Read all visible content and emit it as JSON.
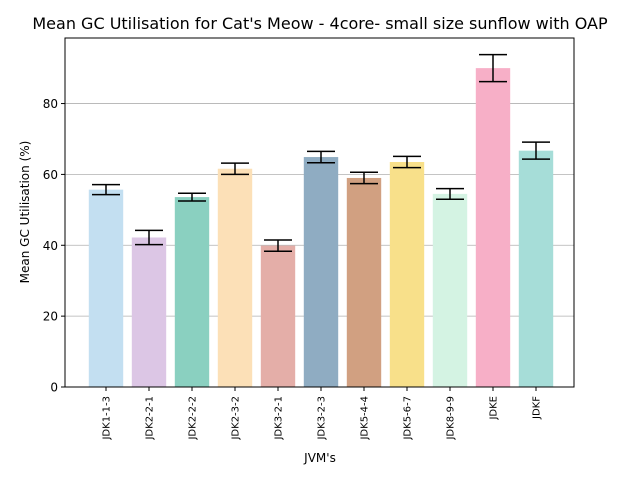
{
  "chart_data": {
    "type": "bar",
    "title": "Mean GC Utilisation for Cat's Meow - 4core- small size sunflow with OAP",
    "xlabel": "JVM's",
    "ylabel": "Mean GC Utilisation (%)",
    "ylim": [
      0,
      98.5
    ],
    "yticks": [
      0,
      20,
      40,
      60,
      80
    ],
    "grid": "y",
    "categories": [
      "JDK1-1-3",
      "JDK2-2-1",
      "JDK2-2-2",
      "JDK2-3-2",
      "JDK3-2-1",
      "JDK3-2-3",
      "JDK5-4-4",
      "JDK5-6-7",
      "JDK8-9-9",
      "JDKE",
      "JDKF"
    ],
    "values": [
      55.7,
      42.2,
      53.6,
      61.6,
      39.9,
      64.9,
      59.0,
      63.5,
      54.5,
      90.0,
      66.7
    ],
    "errors": [
      1.4,
      2.0,
      1.1,
      1.6,
      1.6,
      1.6,
      1.6,
      1.6,
      1.5,
      3.8,
      2.4
    ],
    "colors": [
      "#c3dff1",
      "#dcc6e5",
      "#8ad0c0",
      "#fce0b7",
      "#e4aea8",
      "#8facc2",
      "#d1a081",
      "#f8e08a",
      "#d4f3e3",
      "#f7afc7",
      "#a6ddd8"
    ]
  }
}
